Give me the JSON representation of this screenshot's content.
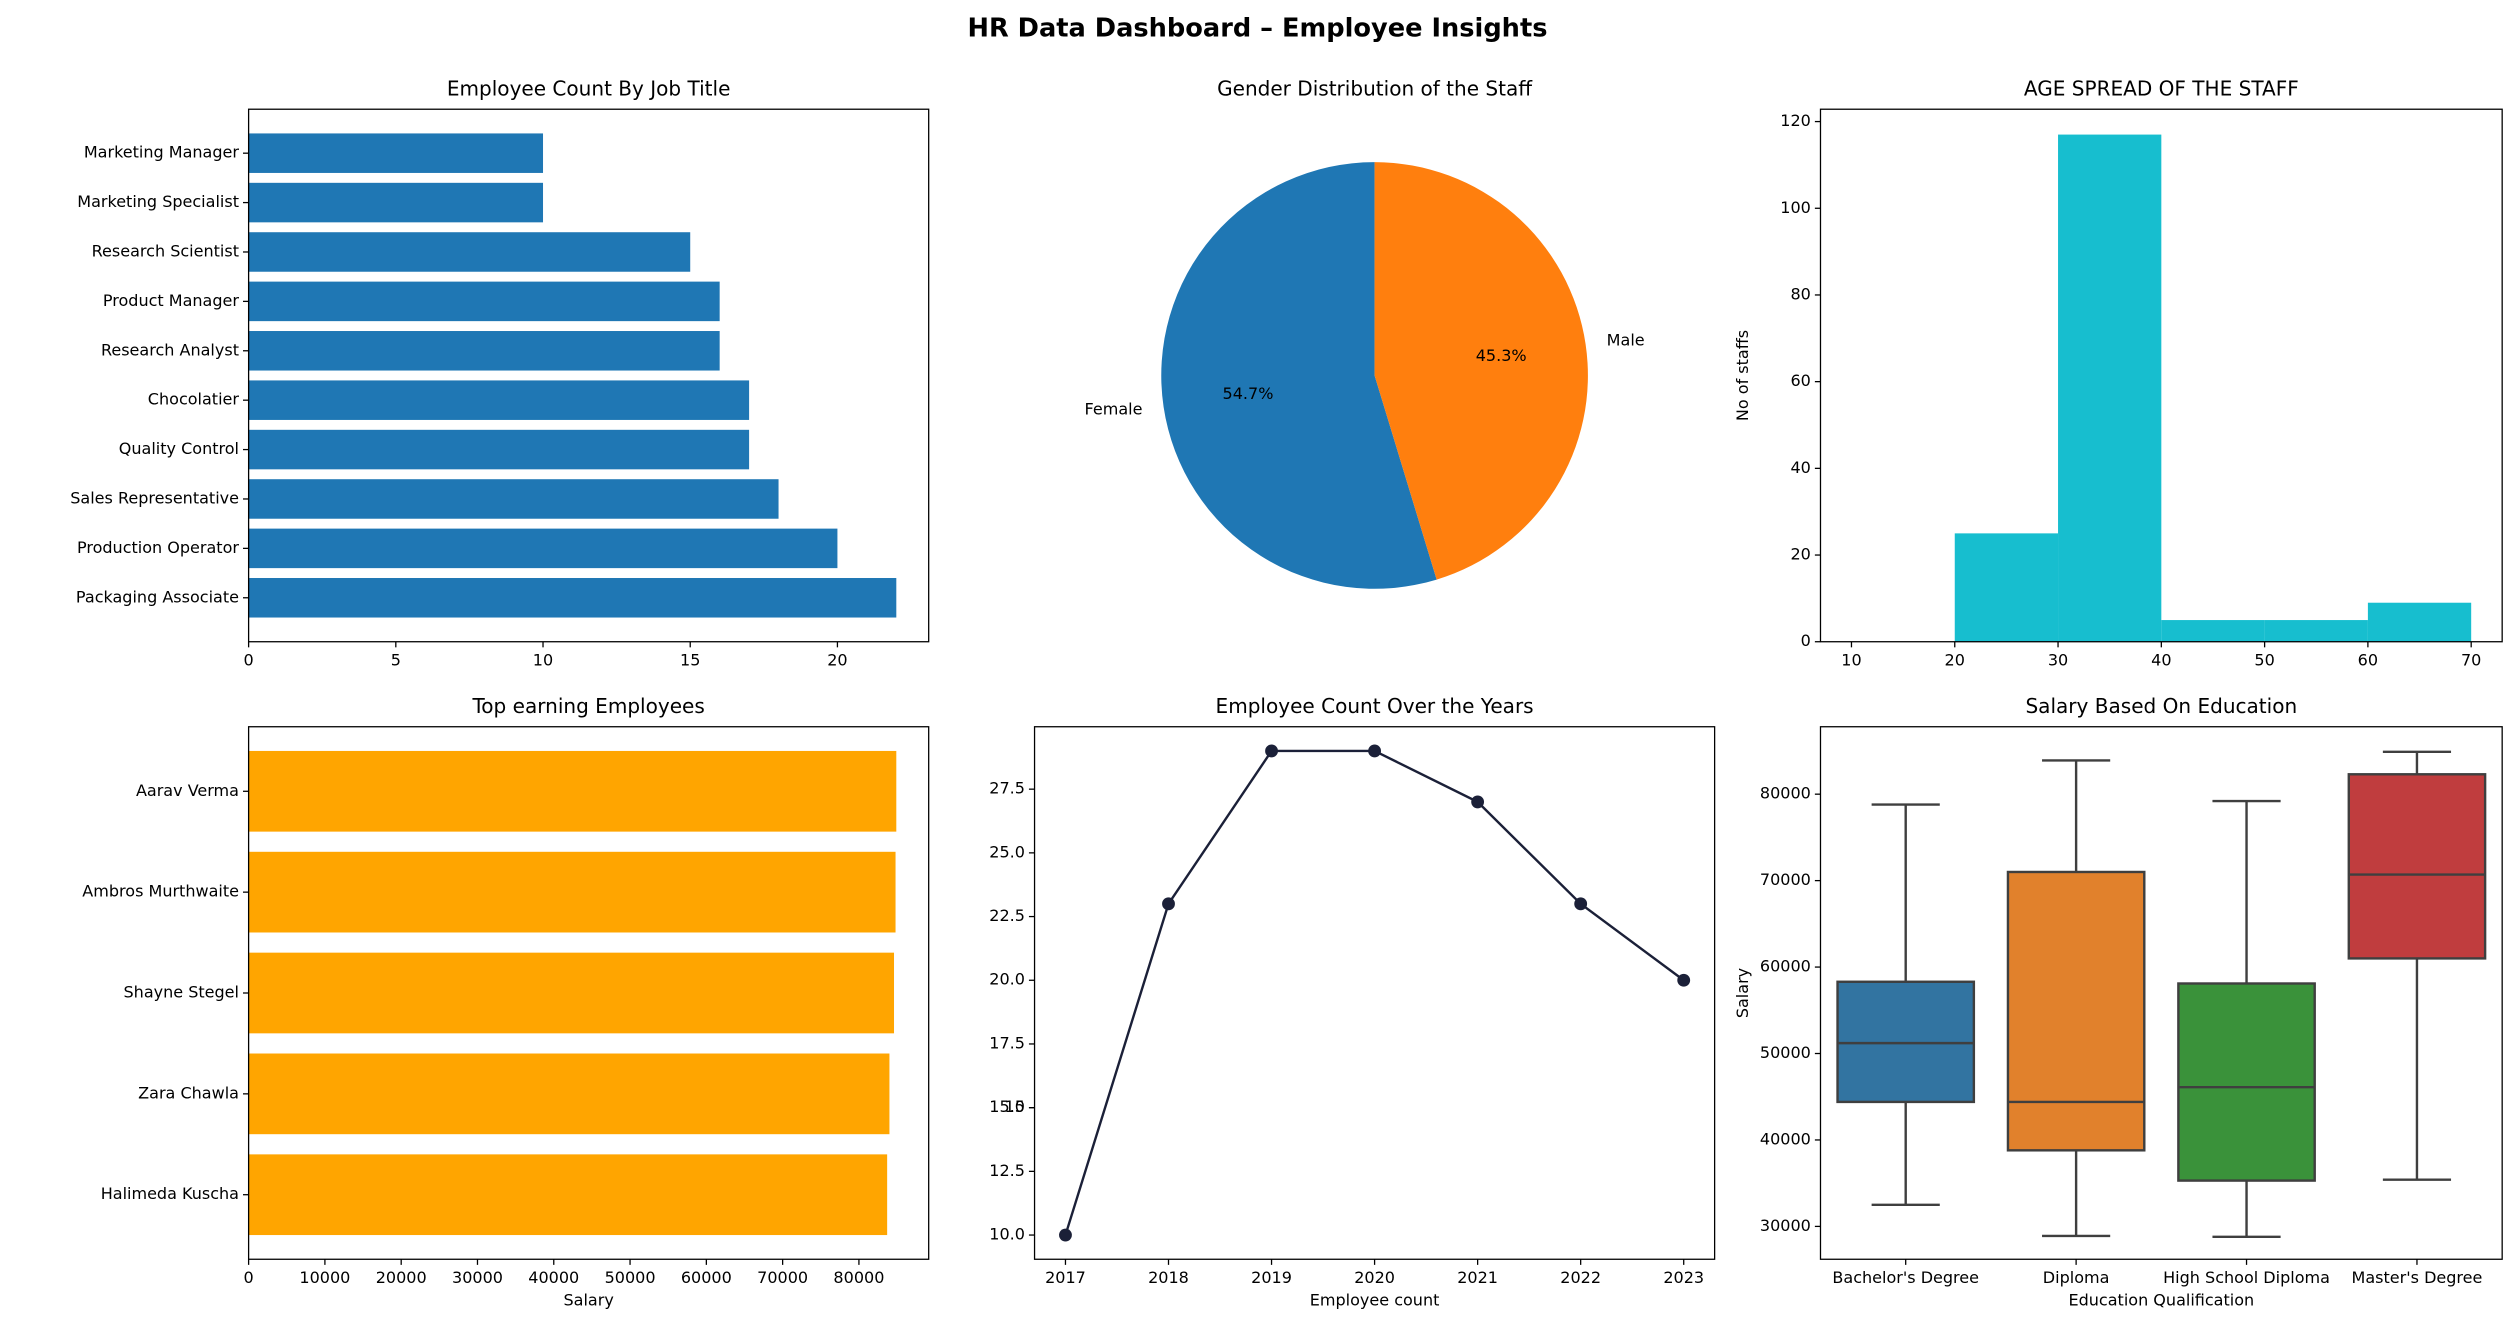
{
  "title": "HR Data Dashboard – Employee Insights",
  "chart_data": [
    {
      "type": "barh",
      "title": "Employee Count By Job Title",
      "categories": [
        "Packaging Associate",
        "Production Operator",
        "Sales Representative",
        "Quality Control",
        "Chocolatier",
        "Research Analyst",
        "Product Manager",
        "Research Scientist",
        "Marketing Specialist",
        "Marketing Manager"
      ],
      "values": [
        22,
        20,
        18,
        17,
        17,
        16,
        16,
        15,
        10,
        10
      ],
      "color": "#1f77b4",
      "xlim": [
        0,
        23.1
      ],
      "xticks": [
        0,
        5,
        10,
        15,
        20
      ]
    },
    {
      "type": "pie",
      "title": "Gender Distribution of the Staff",
      "labels": [
        "Female",
        "Male"
      ],
      "values": [
        54.7,
        45.3
      ],
      "value_labels": [
        "54.7%",
        "45.3%"
      ],
      "colors": [
        "#1f77b4",
        "#ff7f0e"
      ],
      "startangle": 90
    },
    {
      "type": "histogram",
      "title": "AGE SPREAD OF THE STAFF",
      "ylabel": "No of staffs",
      "bins": [
        10,
        20,
        30,
        40,
        50,
        60,
        70
      ],
      "values": [
        0,
        25,
        117,
        5,
        5,
        9
      ],
      "color": "#17becf",
      "xlim": [
        7,
        73
      ],
      "xticks": [
        10,
        20,
        30,
        40,
        50,
        60,
        70
      ],
      "ylim": [
        0,
        122.85
      ],
      "yticks": [
        0,
        20,
        40,
        60,
        80,
        100,
        120
      ]
    },
    {
      "type": "barh",
      "title": "Top earning Employees",
      "xlabel": "Salary",
      "categories": [
        "Halimeda Kuscha",
        "Zara Chawla",
        "Shayne Stegel",
        "Ambros Murthwaite",
        "Aarav Verma"
      ],
      "values": [
        83700,
        84000,
        84600,
        84800,
        84900
      ],
      "color": "#ffa500",
      "xlim": [
        0,
        89145
      ],
      "xticks": [
        0,
        10000,
        20000,
        30000,
        40000,
        50000,
        60000,
        70000,
        80000
      ]
    },
    {
      "type": "line",
      "title": "Employee Count Over the Years",
      "xlabel": "Employee count",
      "x": [
        2017,
        2018,
        2019,
        2020,
        2021,
        2022,
        2023
      ],
      "values": [
        10,
        23,
        29,
        29,
        27,
        23,
        20
      ],
      "color": "#1b2038",
      "xlim": [
        2016.7,
        2023.3
      ],
      "xticks": [
        2017,
        2018,
        2019,
        2020,
        2021,
        2022,
        2023
      ],
      "ylim": [
        9.05,
        29.95
      ],
      "yticks": [
        {
          "value": 10,
          "label": "10.0"
        },
        12.5,
        15,
        {
          "value": 15,
          "label": "15.0"
        },
        17.5,
        {
          "value": 20,
          "label": "20.0"
        },
        22.5,
        {
          "value": 25,
          "label": "25.0"
        },
        27.5
      ]
    },
    {
      "type": "box",
      "title": "Salary Based On Education",
      "xlabel": "Education Qualification",
      "ylabel": "Salary",
      "categories": [
        "Bachelor's Degree",
        "Diploma",
        "High School Diploma",
        "Master's Degree"
      ],
      "boxes": [
        {
          "low": 32500,
          "q1": 44400,
          "median": 51200,
          "q3": 58300,
          "high": 78800
        },
        {
          "low": 28900,
          "q1": 38800,
          "median": 44400,
          "q3": 71000,
          "high": 83900
        },
        {
          "low": 28800,
          "q1": 35300,
          "median": 46100,
          "q3": 58100,
          "high": 79200
        },
        {
          "low": 35400,
          "q1": 61000,
          "median": 70700,
          "q3": 82300,
          "high": 84900
        }
      ],
      "colors": [
        "#3274a1",
        "#e1812c",
        "#3a923a",
        "#c03d3e"
      ],
      "ylim": [
        26200,
        87800
      ],
      "yticks": [
        30000,
        40000,
        50000,
        60000,
        70000,
        80000
      ]
    }
  ]
}
